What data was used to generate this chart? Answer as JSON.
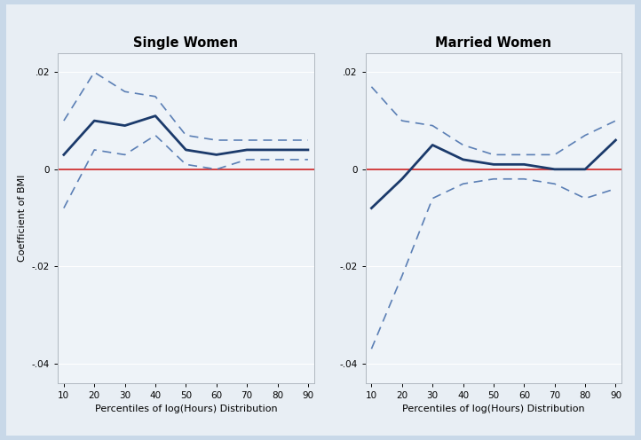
{
  "x": [
    10,
    20,
    30,
    40,
    50,
    60,
    70,
    80,
    90
  ],
  "single_main": [
    0.003,
    0.01,
    0.009,
    0.011,
    0.004,
    0.003,
    0.004,
    0.004,
    0.004
  ],
  "single_upper": [
    0.01,
    0.02,
    0.016,
    0.015,
    0.007,
    0.006,
    0.006,
    0.006,
    0.006
  ],
  "single_lower": [
    -0.008,
    0.004,
    0.003,
    0.007,
    0.001,
    0.0,
    0.002,
    0.002,
    0.002
  ],
  "married_main": [
    -0.008,
    -0.002,
    0.005,
    0.002,
    0.001,
    0.001,
    0.0,
    0.0,
    0.006
  ],
  "married_upper": [
    0.017,
    0.01,
    0.009,
    0.005,
    0.003,
    0.003,
    0.003,
    0.007,
    0.01
  ],
  "married_lower": [
    -0.037,
    -0.022,
    -0.006,
    -0.003,
    -0.002,
    -0.002,
    -0.003,
    -0.006,
    -0.004
  ],
  "ylim": [
    -0.044,
    0.024
  ],
  "yticks": [
    -0.04,
    -0.02,
    0.0,
    0.02
  ],
  "ytick_labels": [
    "-.04",
    "-.02",
    "0",
    ".02"
  ],
  "xticks": [
    10,
    20,
    30,
    40,
    50,
    60,
    70,
    80,
    90
  ],
  "xlabel": "Percentiles of log(Hours) Distribution",
  "ylabel": "Coefficient of BMI",
  "title_single": "Single Women",
  "title_married": "Married Women",
  "line_color": "#1B3A6B",
  "ci_color": "#5B7FB5",
  "ref_color": "#CC2222",
  "outer_bg": "#C8D8E8",
  "inner_bg": "#E8EEF4",
  "plot_bg": "#EEF3F8",
  "grid_color": "#ffffff",
  "spine_color": "#b0b8c0"
}
